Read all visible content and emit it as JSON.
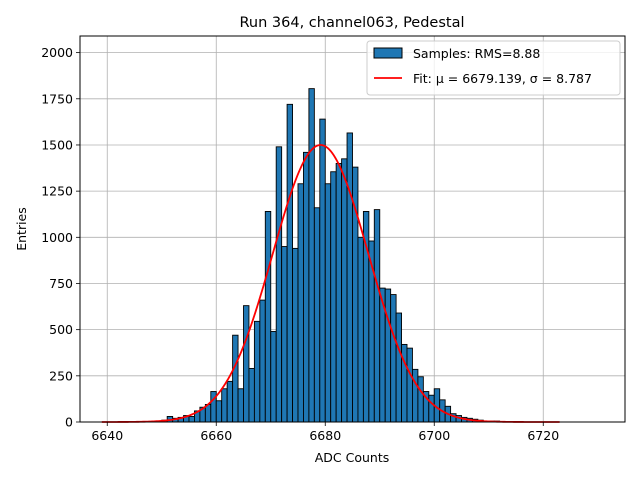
{
  "chart_data": {
    "type": "bar",
    "title": "Run 364, channel063, Pedestal",
    "xlabel": "ADC Counts",
    "ylabel": "Entries",
    "xlim": [
      6635,
      6735
    ],
    "ylim": [
      0,
      2090
    ],
    "xticks": [
      6640,
      6660,
      6680,
      6700,
      6720
    ],
    "yticks": [
      0,
      250,
      500,
      750,
      1000,
      1250,
      1500,
      1750,
      2000
    ],
    "grid": true,
    "legend_position": "top-right",
    "colors": {
      "bar": "#1f77b4",
      "bar_edge": "#000000",
      "fit": "#ff0000",
      "grid": "#b0b0b0"
    },
    "histogram": {
      "name": "Samples: RMS=8.88",
      "bin_start": 6650,
      "bin_width": 1,
      "values": [
        10,
        30,
        20,
        25,
        35,
        30,
        60,
        80,
        95,
        165,
        115,
        180,
        220,
        470,
        180,
        630,
        290,
        545,
        660,
        1140,
        490,
        1490,
        950,
        1720,
        940,
        1290,
        1460,
        1805,
        1160,
        1640,
        1290,
        1355,
        1400,
        1425,
        1565,
        1380,
        1000,
        1140,
        980,
        1150,
        725,
        720,
        690,
        590,
        420,
        400,
        285,
        245,
        165,
        145,
        180,
        120,
        85,
        45,
        35,
        25,
        20,
        15,
        10,
        5,
        5,
        5
      ]
    },
    "fit": {
      "name": "Fit: μ = 6679.139, σ = 8.787",
      "mu": 6679.139,
      "sigma": 8.787,
      "amplitude": 1500,
      "x_range": [
        6639,
        6723
      ]
    }
  }
}
